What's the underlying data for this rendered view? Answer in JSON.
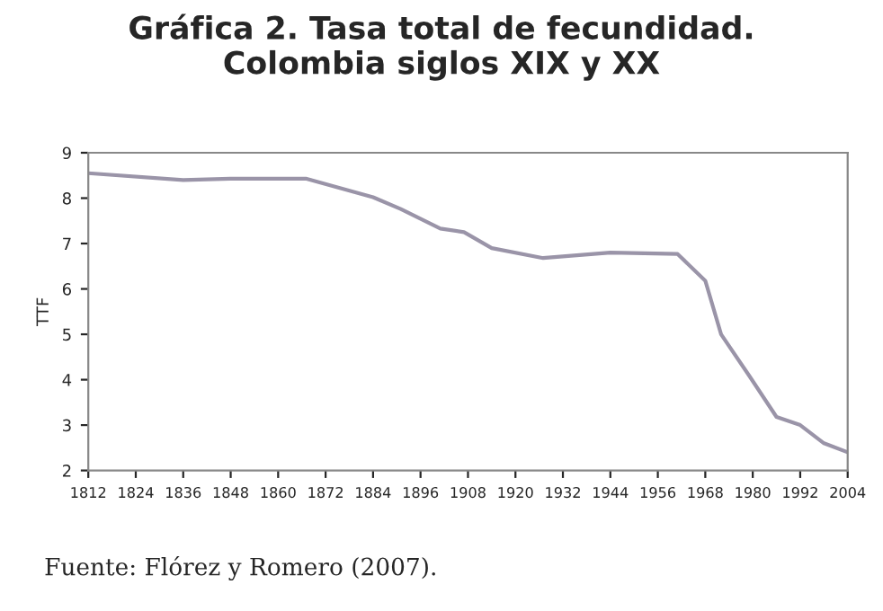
{
  "chart_data": {
    "type": "line",
    "title": "Gráfica 2. Tasa total de fecundidad.\nColombia siglos XIX y XX",
    "ylabel": "TTF",
    "annotations": [
      "Fuente: Flórez y Romero (2007)."
    ],
    "x": [
      1812,
      1836,
      1848,
      1867,
      1884,
      1891,
      1901,
      1907,
      1914,
      1927,
      1944,
      1961,
      1968,
      1972,
      1979,
      1986,
      1992,
      1998,
      2004
    ],
    "series": [
      {
        "color": "#9a94a8",
        "values": [
          8.55,
          8.4,
          8.43,
          8.43,
          8.02,
          7.76,
          7.33,
          7.25,
          6.9,
          6.68,
          6.8,
          6.77,
          6.18,
          5.0,
          4.1,
          3.18,
          3.0,
          2.6,
          2.4
        ]
      }
    ],
    "xlim": [
      1812,
      2004
    ],
    "xticks": [
      1812,
      1824,
      1836,
      1848,
      1860,
      1872,
      1884,
      1896,
      1908,
      1920,
      1932,
      1944,
      1956,
      1968,
      1980,
      1992,
      2004
    ],
    "ylim": [
      2,
      9
    ],
    "yticks": [
      2,
      3,
      4,
      5,
      6,
      7,
      8,
      9
    ],
    "grid": false,
    "legend": false,
    "marker": "none",
    "line_style": "solid"
  }
}
